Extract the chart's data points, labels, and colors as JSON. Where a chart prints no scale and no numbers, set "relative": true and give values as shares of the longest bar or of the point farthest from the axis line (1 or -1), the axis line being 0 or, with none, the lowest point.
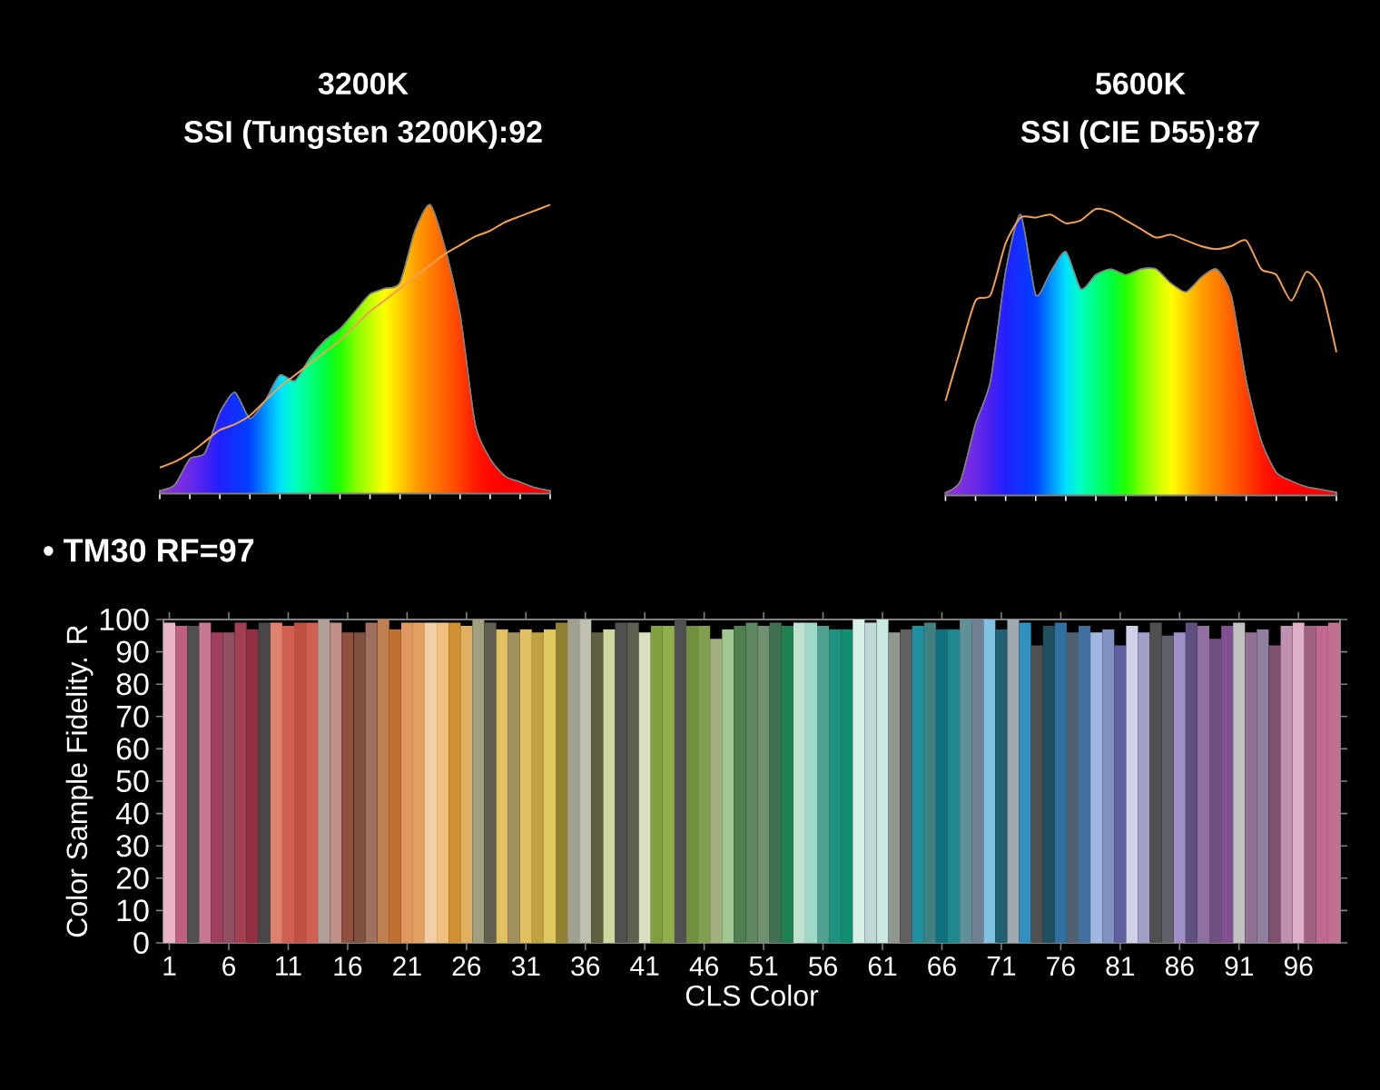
{
  "chart_data": [
    {
      "type": "area",
      "title": "3200K",
      "subtitle": "SSI (Tungsten 3200K):92",
      "relative": true,
      "categories": [
        null,
        null,
        null,
        null,
        null,
        null,
        null,
        null,
        null,
        null,
        null,
        null,
        null,
        null,
        null,
        null,
        null,
        null,
        null,
        null,
        null,
        null,
        null,
        null,
        null,
        null,
        null
      ],
      "series": [
        {
          "type": "area",
          "colors": [
            "#9933cc",
            "#8030dd",
            "#6a2ae8",
            "#4a20f0",
            "#2020ff",
            "#1030ff",
            "#0040ff",
            "#0090ff",
            "#00e0ff",
            "#00ffc0",
            "#00ff80",
            "#00ff40",
            "#20ff00",
            "#80ff00",
            "#c0ff00",
            "#ffff00",
            "#ffd000",
            "#ffa000",
            "#ff8000",
            "#ff6000",
            "#ff4000",
            "#ff1a00",
            "#ff0800",
            "#ff0000",
            "#ff0000",
            "#ff0000",
            "#ff0000"
          ],
          "values": [
            0.01,
            0.03,
            0.12,
            0.14,
            0.28,
            0.35,
            0.26,
            0.32,
            0.41,
            0.39,
            0.47,
            0.53,
            0.57,
            0.63,
            0.69,
            0.71,
            0.73,
            0.91,
            1.0,
            0.85,
            0.62,
            0.24,
            0.12,
            0.06,
            0.04,
            0.02,
            0.01
          ]
        },
        {
          "type": "line",
          "color": "#f0a050",
          "values": [
            0.09,
            0.11,
            0.14,
            0.18,
            0.22,
            0.24,
            0.27,
            0.32,
            0.37,
            0.41,
            0.45,
            0.49,
            0.53,
            0.58,
            0.63,
            0.67,
            0.71,
            0.75,
            0.79,
            0.83,
            0.86,
            0.89,
            0.91,
            0.94,
            0.96,
            0.98,
            1.0
          ]
        }
      ]
    },
    {
      "type": "area",
      "title": "5600K",
      "subtitle": "SSI (CIE D55):87",
      "relative": true,
      "categories": [
        null,
        null,
        null,
        null,
        null,
        null,
        null,
        null,
        null,
        null,
        null,
        null,
        null,
        null,
        null,
        null,
        null,
        null,
        null,
        null,
        null,
        null,
        null,
        null,
        null,
        null,
        null
      ],
      "series": [
        {
          "type": "area",
          "colors": [
            "#9933cc",
            "#8030dd",
            "#6a2ae8",
            "#4a20f0",
            "#2020ff",
            "#1030ff",
            "#0040ff",
            "#0090ff",
            "#00e0ff",
            "#00ffc0",
            "#00ff80",
            "#00ff40",
            "#20ff00",
            "#80ff00",
            "#c0ff00",
            "#ffff00",
            "#ffd000",
            "#ffa000",
            "#ff8000",
            "#ff6000",
            "#ff4000",
            "#ff1a00",
            "#ff0800",
            "#ff0000",
            "#ff0000",
            "#ff0000",
            "#ff0000"
          ],
          "values": [
            0.01,
            0.05,
            0.25,
            0.4,
            0.78,
            0.98,
            0.7,
            0.78,
            0.85,
            0.72,
            0.77,
            0.79,
            0.77,
            0.79,
            0.79,
            0.74,
            0.71,
            0.76,
            0.79,
            0.7,
            0.4,
            0.19,
            0.08,
            0.05,
            0.03,
            0.02,
            0.01
          ]
        },
        {
          "type": "line",
          "color": "#f0a050",
          "values": [
            0.33,
            0.51,
            0.68,
            0.7,
            0.88,
            0.97,
            0.97,
            0.98,
            0.95,
            0.96,
            1.0,
            0.99,
            0.96,
            0.93,
            0.9,
            0.91,
            0.89,
            0.87,
            0.86,
            0.87,
            0.89,
            0.79,
            0.77,
            0.68,
            0.78,
            0.72,
            0.5
          ]
        }
      ]
    },
    {
      "type": "bar",
      "title": "• TM30 RF=97",
      "xlabel": "CLS Color",
      "ylabel": "Color Sample Fidelity. R",
      "ylim": [
        0,
        100
      ],
      "yticks": [
        0,
        10,
        20,
        30,
        40,
        50,
        60,
        70,
        80,
        90,
        100
      ],
      "categories": [
        "1",
        null,
        null,
        null,
        null,
        "6",
        null,
        null,
        null,
        null,
        "11",
        null,
        null,
        null,
        null,
        "16",
        null,
        null,
        null,
        null,
        "21",
        null,
        null,
        null,
        null,
        "26",
        null,
        null,
        null,
        null,
        "31",
        null,
        null,
        null,
        null,
        "36",
        null,
        null,
        null,
        null,
        "41",
        null,
        null,
        null,
        null,
        "46",
        null,
        null,
        null,
        null,
        "51",
        null,
        null,
        null,
        null,
        "56",
        null,
        null,
        null,
        null,
        "61",
        null,
        null,
        null,
        null,
        "66",
        null,
        null,
        null,
        null,
        "71",
        null,
        null,
        null,
        null,
        "76",
        null,
        null,
        null,
        null,
        "81",
        null,
        null,
        null,
        null,
        "86",
        null,
        null,
        null,
        null,
        "91",
        null,
        null,
        null,
        null,
        "96",
        null,
        null,
        null
      ],
      "values": [
        99,
        98,
        98,
        99,
        96,
        96,
        99,
        97,
        99,
        99,
        98,
        99,
        99,
        100,
        99,
        96,
        96,
        99,
        100,
        97,
        99,
        99,
        99,
        99,
        99,
        98,
        100,
        99,
        97,
        96,
        97,
        96,
        97,
        99,
        100,
        100,
        96,
        97,
        99,
        99,
        96,
        98,
        98,
        100,
        98,
        98,
        94,
        97,
        98,
        99,
        98,
        99,
        98,
        99,
        99,
        98,
        97,
        97,
        100,
        99,
        100,
        96,
        97,
        98,
        99,
        97,
        97,
        100,
        100,
        100,
        97,
        100,
        99,
        92,
        98,
        99,
        96,
        98,
        96,
        97,
        92,
        98,
        96,
        99,
        95,
        96,
        99,
        98,
        94,
        98,
        99,
        96,
        97,
        92,
        98,
        99,
        98,
        98,
        99
      ],
      "colors": [
        "#e8b4c8",
        "#c06080",
        "#505050",
        "#c87890",
        "#a04060",
        "#905060",
        "#a04050",
        "#903040",
        "#484848",
        "#e08070",
        "#d06050",
        "#c05040",
        "#d06050",
        "#b0a098",
        "#c09088",
        "#905040",
        "#805040",
        "#a07060",
        "#c08050",
        "#c07030",
        "#e09860",
        "#e0a060",
        "#f0d0a8",
        "#f0c080",
        "#d09030",
        "#e0b060",
        "#a0a080",
        "#606050",
        "#e0c060",
        "#a09060",
        "#e0c060",
        "#c0a040",
        "#e0c860",
        "#908030",
        "#a0a090",
        "#c0c0b0",
        "#606040",
        "#d0d8a0",
        "#505050",
        "#606050",
        "#d8e0c0",
        "#80a040",
        "#90b050",
        "#505050",
        "#709040",
        "#80a050",
        "#a0b080",
        "#a0c890",
        "#508050",
        "#608860",
        "#709070",
        "#407050",
        "#208050",
        "#c0e0d0",
        "#a0d8c8",
        "#50a090",
        "#209080",
        "#109070",
        "#d8f0e8",
        "#c0d8d8",
        "#c8e8e0",
        "#909890",
        "#606060",
        "#2090a0",
        "#408080",
        "#107080",
        "#208890",
        "#609098",
        "#708090",
        "#80c0e0",
        "#206070",
        "#a0a8b0",
        "#3090c0",
        "#505050",
        "#205060",
        "#3070a0",
        "#506070",
        "#4070a0",
        "#a0b8e0",
        "#8090c0",
        "#6060a0",
        "#d0d0e8",
        "#a0a0c8",
        "#505050",
        "#606068",
        "#a090c8",
        "#605080",
        "#9070a0",
        "#705080",
        "#805090",
        "#c0c0c0",
        "#907090",
        "#9080a0",
        "#805070",
        "#c090b0",
        "#e0b0c8",
        "#a06080",
        "#c06890",
        "#c07090"
      ]
    }
  ]
}
